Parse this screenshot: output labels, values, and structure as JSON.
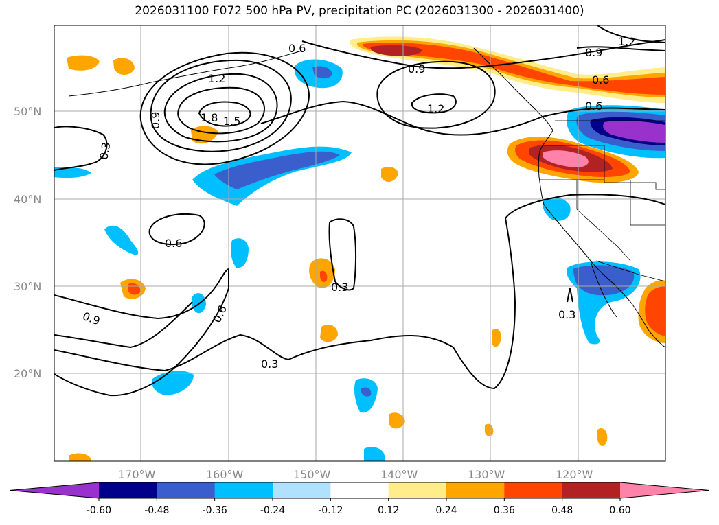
{
  "title": "2026031100 F072 500 hPa PV, precipitation PC (2026031300 - 2026031400)",
  "map": {
    "lat_ticks": [
      "50°N",
      "40°N",
      "30°N",
      "20°N"
    ],
    "lon_ticks": [
      "170°W",
      "160°W",
      "150°W",
      "140°W",
      "130°W",
      "120°W"
    ],
    "contour_labels": [
      "1.2",
      "1.8",
      "1.5",
      "0.9",
      "0.3",
      "0.6",
      "1.2",
      "0.9",
      "1.2",
      "0.6",
      "0.9",
      "0.6",
      "0.6",
      "0.3",
      "0.3",
      "0.3",
      "0.9",
      "0.6"
    ]
  },
  "colorbar": {
    "colors": [
      "#9932CC",
      "#00008B",
      "#3A5FCD",
      "#00BFFF",
      "#B0E2FF",
      "#FFFFFF",
      "#FFEC8B",
      "#FFA500",
      "#FF4500",
      "#B22222",
      "#FF82AB"
    ],
    "labels": [
      "-0.60",
      "-0.48",
      "-0.36",
      "-0.24",
      "-0.12",
      "0.12",
      "0.24",
      "0.36",
      "0.48",
      "0.60"
    ]
  }
}
